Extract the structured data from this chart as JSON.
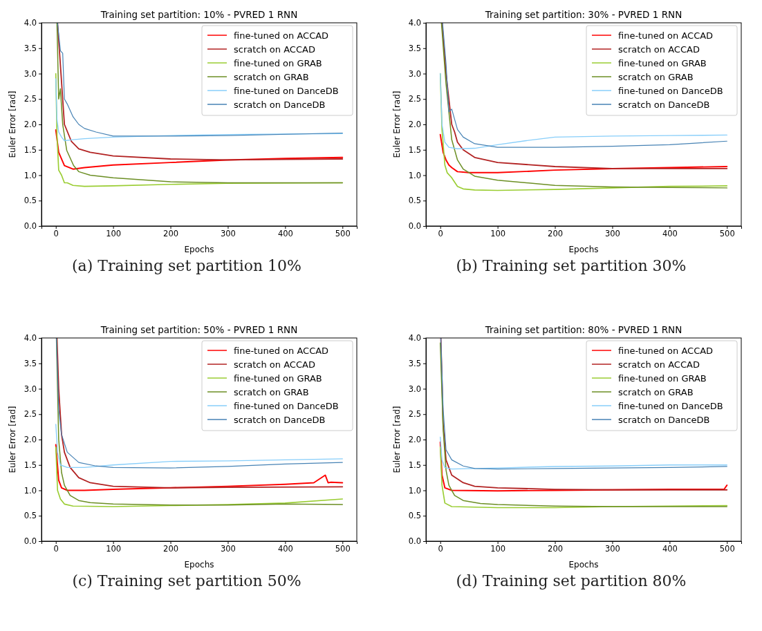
{
  "chart_data": [
    {
      "type": "line",
      "title": "Training set partition: 10% - PVRED 1 RNN",
      "xlabel": "Epochs",
      "ylabel": "Euler Error [rad]",
      "annotations": [
        "(a) Training set partition 10%"
      ],
      "xlim": [
        -25,
        525
      ],
      "ylim": [
        0,
        4
      ],
      "xticks": [
        0,
        100,
        200,
        300,
        400,
        500
      ],
      "yticks": [
        {
          "value": 0,
          "label": "0.0"
        },
        {
          "value": 0.5,
          "label": "0.5"
        },
        {
          "value": 1,
          "label": "1.0"
        },
        {
          "value": 1.5,
          "label": "1.5"
        },
        {
          "value": 2,
          "label": "2.0"
        },
        {
          "value": 2.5,
          "label": "2.5"
        },
        {
          "value": 3,
          "label": "3.0"
        },
        {
          "value": 3.5,
          "label": "3.5"
        },
        {
          "value": 4,
          "label": "4.0"
        }
      ],
      "grid": false,
      "legend": "top right",
      "line_style": "solid",
      "series": [
        {
          "name": "fine-tuned on ACCAD",
          "color": "#ff0000",
          "x": [
            0,
            5,
            15,
            30,
            50,
            100,
            200,
            300,
            400,
            500
          ],
          "values": [
            1.89,
            1.45,
            1.19,
            1.12,
            1.15,
            1.2,
            1.25,
            1.3,
            1.33,
            1.35
          ]
        },
        {
          "name": "scratch on ACCAD",
          "color": "#b22222",
          "x": [
            3,
            15,
            27,
            40,
            60,
            100,
            200,
            300,
            400,
            500
          ],
          "values": [
            4,
            2.0,
            1.67,
            1.52,
            1.45,
            1.38,
            1.32,
            1.3,
            1.31,
            1.32
          ]
        },
        {
          "name": "fine-tuned on GRAB",
          "color": "#9acd32",
          "x": [
            0,
            2,
            5,
            10,
            15,
            20,
            30,
            50,
            100,
            200,
            300,
            500
          ],
          "values": [
            3.0,
            1.8,
            1.1,
            1.0,
            0.85,
            0.85,
            0.8,
            0.78,
            0.79,
            0.82,
            0.84,
            0.85
          ]
        },
        {
          "name": "scratch on GRAB",
          "color": "#6b8e23",
          "x": [
            2,
            5,
            8,
            12,
            19,
            31,
            40,
            60,
            100,
            200,
            300,
            500
          ],
          "values": [
            4,
            2.5,
            2.7,
            2.0,
            1.49,
            1.19,
            1.07,
            1.0,
            0.95,
            0.87,
            0.85,
            0.85
          ]
        },
        {
          "name": "fine-tuned on DanceDB",
          "color": "#87cefa",
          "x": [
            0,
            2,
            5,
            10,
            15,
            30,
            50,
            100,
            200,
            300,
            500
          ],
          "values": [
            2.9,
            2.1,
            1.85,
            1.75,
            1.68,
            1.7,
            1.72,
            1.75,
            1.78,
            1.8,
            1.82
          ]
        },
        {
          "name": "scratch on DanceDB",
          "color": "#4682b4",
          "x": [
            3,
            8,
            12,
            15,
            20,
            30,
            40,
            50,
            70,
            100,
            200,
            300,
            500
          ],
          "values": [
            4,
            3.45,
            3.4,
            2.5,
            2.4,
            2.15,
            2.0,
            1.92,
            1.85,
            1.77,
            1.77,
            1.78,
            1.83
          ]
        }
      ]
    },
    {
      "type": "line",
      "title": "Training set partition: 30% - PVRED 1 RNN",
      "xlabel": "Epochs",
      "ylabel": "Euler Error [rad]",
      "annotations": [
        "(b) Training set partition 30%"
      ],
      "xlim": [
        -25,
        525
      ],
      "ylim": [
        0,
        4
      ],
      "xticks": [
        0,
        100,
        200,
        300,
        400,
        500
      ],
      "yticks": [
        {
          "value": 0,
          "label": "0.0"
        },
        {
          "value": 0.5,
          "label": "0.5"
        },
        {
          "value": 1,
          "label": "1.0"
        },
        {
          "value": 1.5,
          "label": "1.5"
        },
        {
          "value": 2,
          "label": "2.0"
        },
        {
          "value": 2.5,
          "label": "2.5"
        },
        {
          "value": 3,
          "label": "3.0"
        },
        {
          "value": 3.5,
          "label": "3.5"
        },
        {
          "value": 4,
          "label": "4.0"
        }
      ],
      "grid": false,
      "legend": "top right",
      "line_style": "solid",
      "series": [
        {
          "name": "fine-tuned on ACCAD",
          "color": "#ff0000",
          "x": [
            0,
            5,
            10,
            15,
            20,
            30,
            50,
            100,
            200,
            300,
            400,
            500
          ],
          "values": [
            1.8,
            1.45,
            1.3,
            1.2,
            1.15,
            1.07,
            1.05,
            1.05,
            1.1,
            1.13,
            1.15,
            1.17
          ]
        },
        {
          "name": "scratch on ACCAD",
          "color": "#b22222",
          "x": [
            3,
            10,
            20,
            25,
            30,
            40,
            60,
            100,
            200,
            300,
            500
          ],
          "values": [
            4,
            3.0,
            2.0,
            1.85,
            1.65,
            1.5,
            1.35,
            1.25,
            1.17,
            1.13,
            1.13
          ]
        },
        {
          "name": "fine-tuned on GRAB",
          "color": "#9acd32",
          "x": [
            0,
            3,
            8,
            12,
            20,
            30,
            40,
            60,
            100,
            200,
            300,
            400,
            500
          ],
          "values": [
            3.0,
            1.9,
            1.2,
            1.05,
            0.95,
            0.78,
            0.73,
            0.71,
            0.7,
            0.72,
            0.75,
            0.78,
            0.79
          ]
        },
        {
          "name": "scratch on GRAB",
          "color": "#6b8e23",
          "x": [
            2,
            10,
            20,
            30,
            40,
            60,
            100,
            200,
            300,
            400,
            500
          ],
          "values": [
            4,
            2.8,
            1.7,
            1.3,
            1.12,
            0.98,
            0.9,
            0.8,
            0.77,
            0.76,
            0.75
          ]
        },
        {
          "name": "fine-tuned on DanceDB",
          "color": "#87cefa",
          "x": [
            0,
            3,
            8,
            15,
            30,
            60,
            100,
            150,
            200,
            300,
            400,
            500
          ],
          "values": [
            3.0,
            2.0,
            1.65,
            1.55,
            1.52,
            1.53,
            1.6,
            1.68,
            1.75,
            1.77,
            1.78,
            1.79
          ]
        },
        {
          "name": "scratch on DanceDB",
          "color": "#4682b4",
          "x": [
            4,
            10,
            15,
            20,
            25,
            30,
            40,
            60,
            100,
            200,
            300,
            400,
            500
          ],
          "values": [
            4,
            3.2,
            2.25,
            2.3,
            2.1,
            1.9,
            1.75,
            1.62,
            1.55,
            1.55,
            1.57,
            1.6,
            1.67
          ]
        }
      ]
    },
    {
      "type": "line",
      "title": "Training set partition: 50% - PVRED 1 RNN",
      "xlabel": "Epochs",
      "ylabel": "Euler Error [rad]",
      "annotations": [
        "(c) Training set partition 50%"
      ],
      "xlim": [
        -25,
        525
      ],
      "ylim": [
        0,
        4
      ],
      "xticks": [
        0,
        100,
        200,
        300,
        400,
        500
      ],
      "yticks": [
        {
          "value": 0,
          "label": "0.0"
        },
        {
          "value": 0.5,
          "label": "0.5"
        },
        {
          "value": 1,
          "label": "1.0"
        },
        {
          "value": 1.5,
          "label": "1.5"
        },
        {
          "value": 2,
          "label": "2.0"
        },
        {
          "value": 2.5,
          "label": "2.5"
        },
        {
          "value": 3,
          "label": "3.0"
        },
        {
          "value": 3.5,
          "label": "3.5"
        },
        {
          "value": 4,
          "label": "4.0"
        }
      ],
      "grid": false,
      "legend": "top right",
      "line_style": "solid",
      "series": [
        {
          "name": "fine-tuned on ACCAD",
          "color": "#ff0000",
          "x": [
            0,
            5,
            10,
            20,
            50,
            100,
            200,
            300,
            400,
            450,
            470,
            475,
            480,
            500
          ],
          "values": [
            1.9,
            1.2,
            1.05,
            1.0,
            1.0,
            1.02,
            1.05,
            1.08,
            1.12,
            1.15,
            1.3,
            1.15,
            1.16,
            1.15
          ]
        },
        {
          "name": "scratch on ACCAD",
          "color": "#b22222",
          "x": [
            2,
            5,
            10,
            15,
            25,
            40,
            60,
            100,
            200,
            300,
            500
          ],
          "values": [
            4,
            3.0,
            2.1,
            1.75,
            1.45,
            1.25,
            1.15,
            1.08,
            1.05,
            1.06,
            1.07
          ]
        },
        {
          "name": "fine-tuned on GRAB",
          "color": "#9acd32",
          "x": [
            0,
            3,
            8,
            15,
            30,
            100,
            200,
            300,
            400,
            500
          ],
          "values": [
            1.85,
            1.0,
            0.83,
            0.73,
            0.69,
            0.68,
            0.7,
            0.72,
            0.75,
            0.83
          ]
        },
        {
          "name": "scratch on GRAB",
          "color": "#6b8e23",
          "x": [
            1,
            5,
            10,
            15,
            25,
            40,
            60,
            100,
            200,
            300,
            400,
            500
          ],
          "values": [
            4,
            2.0,
            1.35,
            1.1,
            0.9,
            0.8,
            0.76,
            0.73,
            0.71,
            0.71,
            0.73,
            0.72
          ]
        },
        {
          "name": "fine-tuned on DanceDB",
          "color": "#87cefa",
          "x": [
            0,
            3,
            8,
            20,
            50,
            100,
            200,
            300,
            400,
            500
          ],
          "values": [
            2.3,
            1.75,
            1.5,
            1.45,
            1.45,
            1.5,
            1.57,
            1.58,
            1.6,
            1.62
          ]
        },
        {
          "name": "scratch on DanceDB",
          "color": "#4682b4",
          "x": [
            1,
            5,
            10,
            20,
            40,
            70,
            100,
            200,
            300,
            400,
            500
          ],
          "values": [
            4,
            2.6,
            2.1,
            1.75,
            1.55,
            1.48,
            1.45,
            1.44,
            1.47,
            1.52,
            1.55
          ]
        }
      ]
    },
    {
      "type": "line",
      "title": "Training set partition: 80% - PVRED 1 RNN",
      "xlabel": "Epochs",
      "ylabel": "Euler Error [rad]",
      "annotations": [
        "(d) Training set partition 80%"
      ],
      "xlim": [
        -25,
        525
      ],
      "ylim": [
        0,
        4
      ],
      "xticks": [
        0,
        100,
        200,
        300,
        400,
        500
      ],
      "yticks": [
        {
          "value": 0,
          "label": "0.0"
        },
        {
          "value": 0.5,
          "label": "0.5"
        },
        {
          "value": 1,
          "label": "1.0"
        },
        {
          "value": 1.5,
          "label": "1.5"
        },
        {
          "value": 2,
          "label": "2.0"
        },
        {
          "value": 2.5,
          "label": "2.5"
        },
        {
          "value": 3,
          "label": "3.0"
        },
        {
          "value": 3.5,
          "label": "3.5"
        },
        {
          "value": 4,
          "label": "4.0"
        }
      ],
      "grid": false,
      "legend": "top right",
      "line_style": "solid",
      "series": [
        {
          "name": "fine-tuned on ACCAD",
          "color": "#ff0000",
          "x": [
            0,
            3,
            8,
            20,
            100,
            200,
            300,
            400,
            495,
            500
          ],
          "values": [
            1.95,
            1.3,
            1.05,
            1.0,
            0.99,
            1.0,
            1.01,
            1.02,
            1.02,
            1.1
          ]
        },
        {
          "name": "scratch on ACCAD",
          "color": "#b22222",
          "x": [
            1,
            5,
            10,
            20,
            40,
            60,
            100,
            200,
            300,
            500
          ],
          "values": [
            4,
            2.3,
            1.6,
            1.3,
            1.15,
            1.08,
            1.05,
            1.02,
            1.01,
            1.01
          ]
        },
        {
          "name": "fine-tuned on GRAB",
          "color": "#9acd32",
          "x": [
            0,
            3,
            8,
            20,
            100,
            200,
            300,
            400,
            500
          ],
          "values": [
            1.85,
            1.1,
            0.75,
            0.68,
            0.66,
            0.66,
            0.68,
            0.69,
            0.7
          ]
        },
        {
          "name": "scratch on GRAB",
          "color": "#6b8e23",
          "x": [
            0,
            5,
            10,
            15,
            25,
            40,
            70,
            100,
            200,
            300,
            500
          ],
          "values": [
            3.9,
            2.2,
            1.4,
            1.1,
            0.9,
            0.8,
            0.74,
            0.72,
            0.69,
            0.68,
            0.68
          ]
        },
        {
          "name": "fine-tuned on DanceDB",
          "color": "#87cefa",
          "x": [
            0,
            3,
            8,
            20,
            100,
            200,
            300,
            400,
            500
          ],
          "values": [
            2.05,
            1.6,
            1.45,
            1.42,
            1.44,
            1.47,
            1.48,
            1.5,
            1.5
          ]
        },
        {
          "name": "scratch on DanceDB",
          "color": "#4682b4",
          "x": [
            1,
            5,
            10,
            20,
            40,
            60,
            100,
            200,
            300,
            400,
            500
          ],
          "values": [
            4,
            2.6,
            1.8,
            1.6,
            1.48,
            1.43,
            1.42,
            1.43,
            1.44,
            1.45,
            1.47
          ]
        }
      ]
    }
  ]
}
